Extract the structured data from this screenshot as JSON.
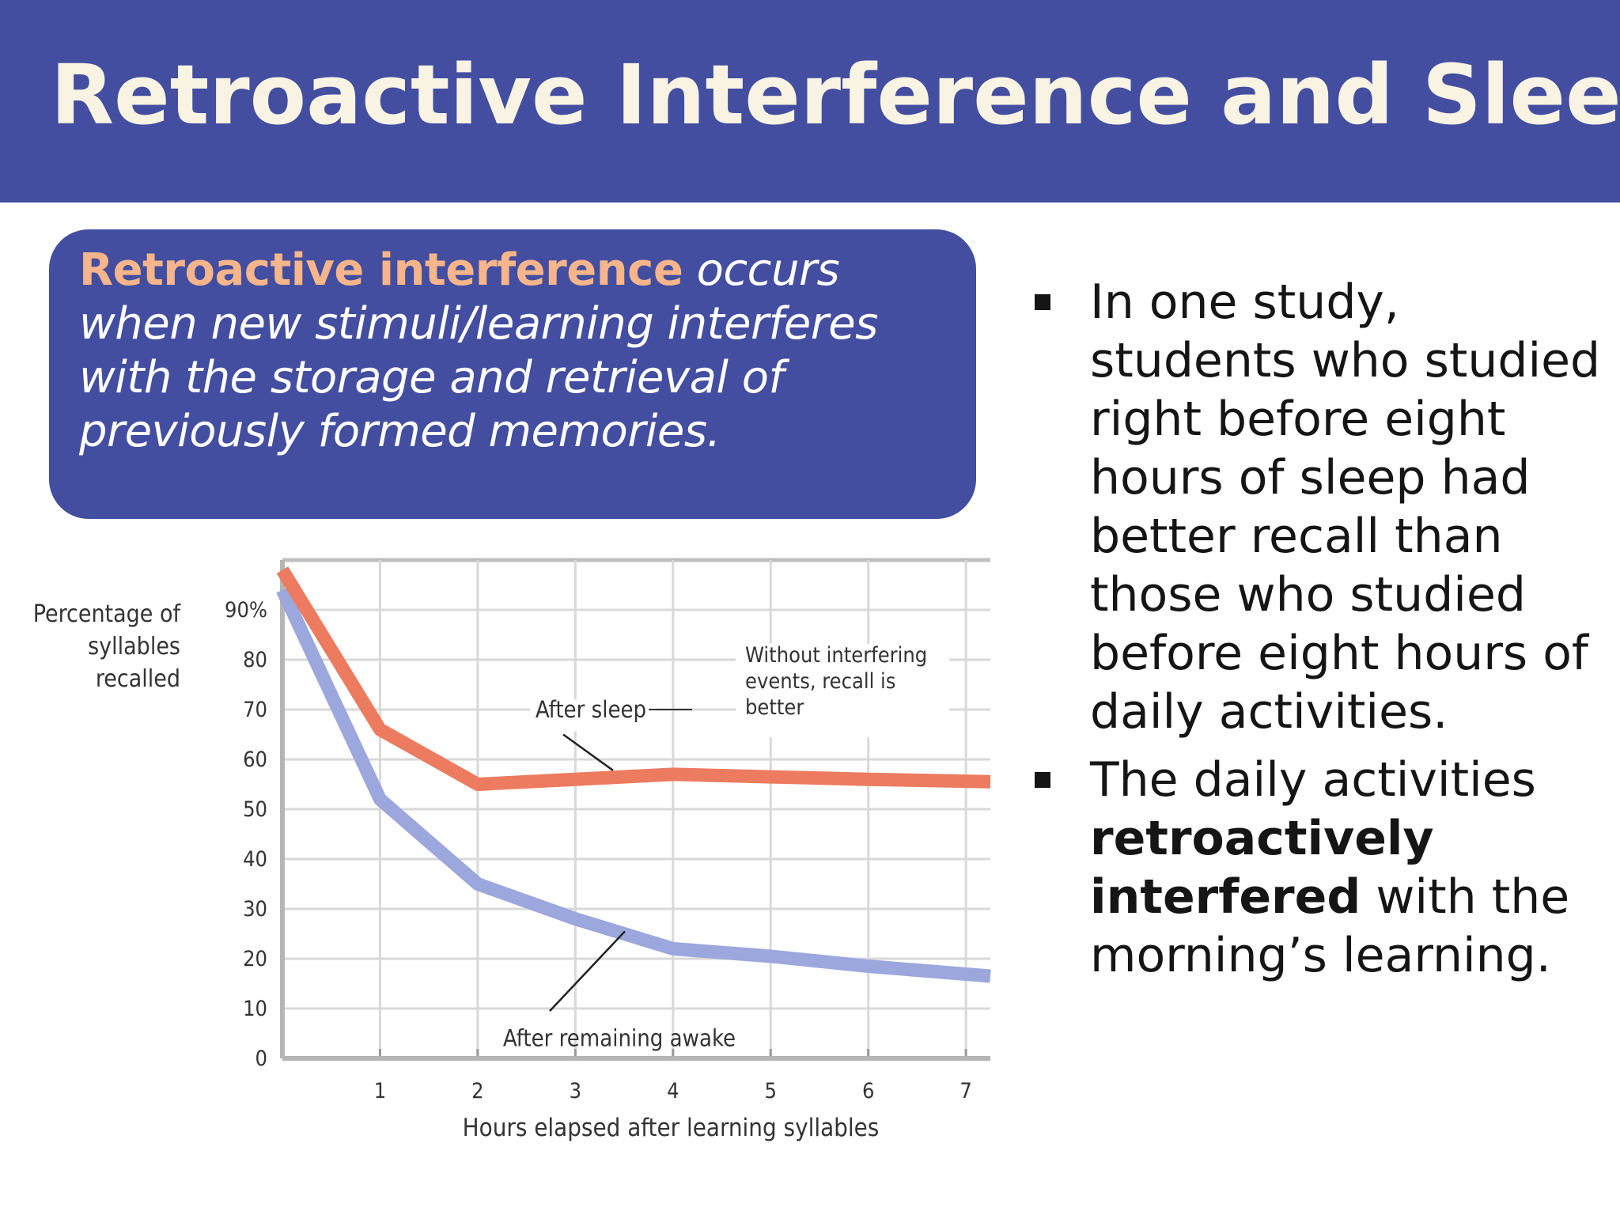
{
  "slide": {
    "title": "Retroactive Interference and Sleep"
  },
  "definition": {
    "term": "Retroactive interference",
    "text": " occurs when new stimuli/learning interferes with the storage and retrieval of previously formed memories."
  },
  "bullets": [
    {
      "text": "In one study, students who studied right before eight hours of sleep had better recall than those who studied before eight hours of daily activities."
    },
    {
      "before": "The daily activities ",
      "bold": "retroactively interfered",
      "after": " with the morning’s learning."
    }
  ],
  "colors": {
    "header_bg": "#434ea0",
    "title_text": "#f8f3e3",
    "term_text": "#f6b58a",
    "after_sleep_line": "#ec7b5f",
    "awake_line": "#9ba7dd",
    "grid": "#d9d9d9"
  },
  "chart_data": {
    "type": "line",
    "ylabel": "Percentage of syllables recalled",
    "xlabel": "Hours elapsed after learning syllables",
    "y_tick_labels": [
      "0",
      "10",
      "20",
      "30",
      "40",
      "50",
      "60",
      "70",
      "80",
      "90%"
    ],
    "x_tick_labels": [
      "1",
      "2",
      "3",
      "4",
      "5",
      "6",
      "7"
    ],
    "ylim": [
      0,
      100
    ],
    "xlim": [
      0,
      7.25
    ],
    "grid": true,
    "series": [
      {
        "name": "After sleep",
        "color": "#ec7b5f",
        "x": [
          0,
          1,
          2,
          3,
          4,
          5,
          6,
          7.25
        ],
        "values": [
          98,
          66,
          55,
          56,
          57,
          56.5,
          56,
          55.5
        ]
      },
      {
        "name": "After remaining awake",
        "color": "#9ba7dd",
        "x": [
          0,
          1,
          2,
          3,
          4,
          5,
          6,
          7.25
        ],
        "values": [
          94,
          52,
          35,
          28,
          22,
          20.5,
          18.5,
          16.5
        ]
      }
    ],
    "annotations": [
      {
        "text": "After sleep",
        "points_to_series": 0,
        "at_x": 3.4
      },
      {
        "text": "After remaining awake",
        "points_to_series": 1,
        "at_x": 3.5
      },
      {
        "text": "Without interfering events, recall is better"
      }
    ]
  }
}
